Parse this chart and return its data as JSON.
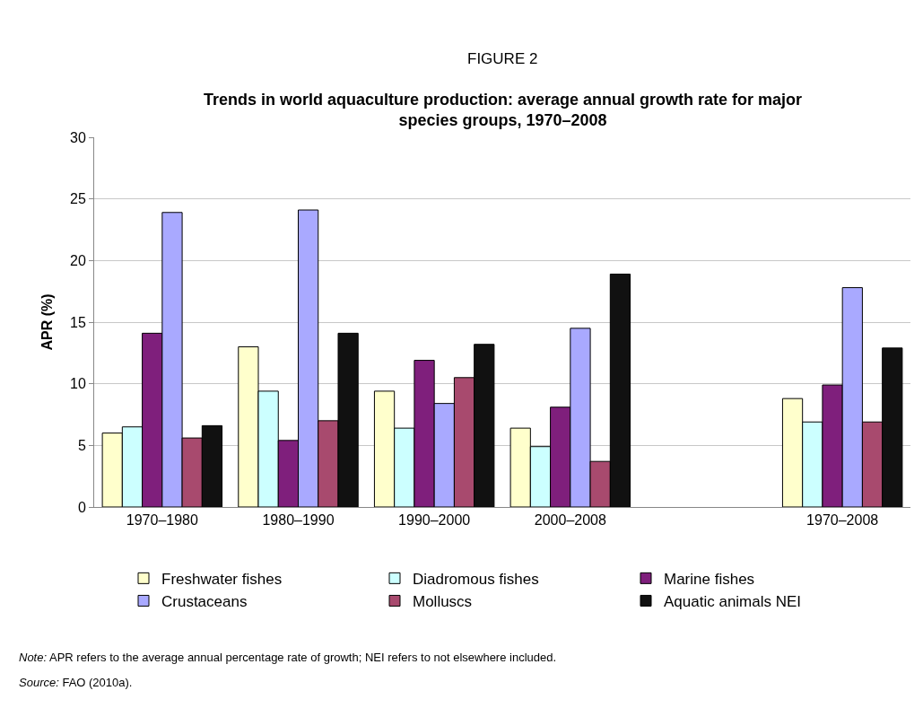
{
  "chart_data": {
    "type": "bar",
    "title": "FIGURE 2",
    "subtitle": "Trends in world aquaculture production: average annual growth rate for major species groups, 1970–2008",
    "ylabel": "APR (%)",
    "categories": [
      "1970–1980",
      "1980–1990",
      "1990–2000",
      "2000–2008",
      null,
      "1970–2008"
    ],
    "series": [
      {
        "name": "Freshwater fishes",
        "color": "#ffffcc",
        "values": [
          6.0,
          13.0,
          9.4,
          6.4,
          null,
          8.8
        ]
      },
      {
        "name": "Diadromous fishes",
        "color": "#ccffff",
        "values": [
          6.5,
          9.4,
          6.4,
          4.9,
          null,
          6.9
        ]
      },
      {
        "name": "Marine fishes",
        "color": "#7f1f7c",
        "values": [
          14.1,
          5.4,
          11.9,
          8.1,
          null,
          9.9
        ]
      },
      {
        "name": "Crustaceans",
        "color": "#a9a9ff",
        "values": [
          23.9,
          24.1,
          8.4,
          14.5,
          null,
          17.8
        ]
      },
      {
        "name": "Molluscs",
        "color": "#a84a6e",
        "values": [
          5.6,
          7.0,
          10.5,
          3.7,
          null,
          6.9
        ]
      },
      {
        "name": "Aquatic animals NEI",
        "color": "#111111",
        "values": [
          6.6,
          14.1,
          13.2,
          18.9,
          null,
          12.9
        ]
      }
    ],
    "ylim": [
      0,
      30
    ],
    "yticks": [
      0,
      5,
      10,
      15,
      20,
      25,
      30
    ],
    "grid": "y",
    "legend": "bottom",
    "annotations": [
      "Note: APR refers to the average annual percentage rate of growth; NEI refers to not elsewhere included.",
      "Source: FAO (2010a)."
    ]
  }
}
